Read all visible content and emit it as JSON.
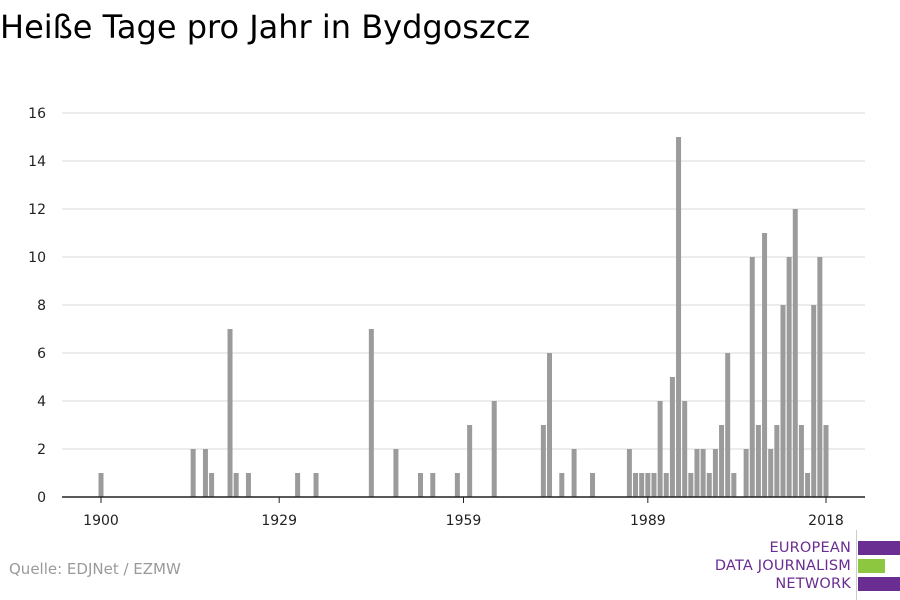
{
  "title": "Heiße Tage pro Jahr in Bydgoszcz",
  "source": "Quelle: EDJNet / EZMW",
  "logo": {
    "lines": [
      "EUROPEAN",
      "DATA JOURNALISM",
      "NETWORK"
    ],
    "colors": {
      "purple": "#6a2d91",
      "green": "#8dc63f"
    }
  },
  "chart_data": {
    "type": "bar",
    "title": "",
    "xlabel": "",
    "ylabel": "",
    "bar_color": "#9b9b9b",
    "grid": true,
    "ylim": [
      0,
      16
    ],
    "yticks": [
      0,
      2,
      4,
      6,
      8,
      10,
      12,
      14,
      16
    ],
    "xlim": [
      1900,
      2018
    ],
    "xticks": [
      1900,
      1929,
      1959,
      1989,
      2018
    ],
    "x": [
      1900,
      1915,
      1917,
      1918,
      1921,
      1922,
      1924,
      1932,
      1935,
      1944,
      1948,
      1952,
      1954,
      1958,
      1960,
      1964,
      1972,
      1973,
      1975,
      1977,
      1980,
      1986,
      1987,
      1988,
      1989,
      1990,
      1991,
      1992,
      1993,
      1994,
      1995,
      1996,
      1997,
      1998,
      1999,
      2000,
      2001,
      2002,
      2003,
      2005,
      2006,
      2007,
      2008,
      2009,
      2010,
      2011,
      2012,
      2013,
      2014,
      2015,
      2016,
      2017,
      2018
    ],
    "values": [
      1,
      2,
      2,
      1,
      7,
      1,
      1,
      1,
      1,
      7,
      2,
      1,
      1,
      1,
      3,
      4,
      3,
      6,
      1,
      2,
      1,
      2,
      1,
      1,
      1,
      1,
      4,
      1,
      5,
      15,
      4,
      1,
      2,
      2,
      1,
      2,
      3,
      6,
      1,
      2,
      10,
      3,
      11,
      2,
      3,
      8,
      10,
      12,
      3,
      1,
      8,
      10,
      3
    ]
  }
}
